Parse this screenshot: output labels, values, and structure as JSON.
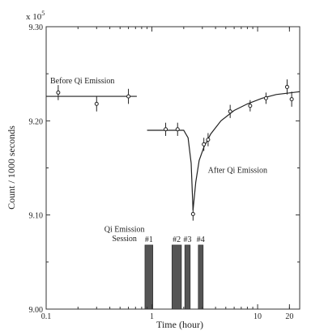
{
  "chart_data": {
    "type": "scatter",
    "xscale": "log",
    "xlabel": "Time (hour)",
    "ylabel": "Count / 1000 seconds",
    "multiplier_label": "x 10",
    "multiplier_exp": "5",
    "xlim": [
      0.1,
      25
    ],
    "ylim": [
      9.0,
      9.3
    ],
    "xticks": [
      {
        "value": 0.1,
        "label": "0.1"
      },
      {
        "value": 1,
        "label": "1"
      },
      {
        "value": 10,
        "label": "10"
      },
      {
        "value": 20,
        "label": "20"
      }
    ],
    "yticks": [
      {
        "value": 9.0,
        "label": "9.00"
      },
      {
        "value": 9.1,
        "label": "9.10"
      },
      {
        "value": 9.2,
        "label": "9.20"
      },
      {
        "value": 9.3,
        "label": "9.30"
      }
    ],
    "points": [
      {
        "x": 0.13,
        "y": 9.23,
        "err": 0.008
      },
      {
        "x": 0.3,
        "y": 9.218,
        "err": 0.008
      },
      {
        "x": 0.6,
        "y": 9.226,
        "err": 0.008
      },
      {
        "x": 1.35,
        "y": 9.191,
        "err": 0.007
      },
      {
        "x": 1.75,
        "y": 9.191,
        "err": 0.007
      },
      {
        "x": 2.45,
        "y": 9.101,
        "err": 0.007
      },
      {
        "x": 3.1,
        "y": 9.175,
        "err": 0.007
      },
      {
        "x": 3.4,
        "y": 9.18,
        "err": 0.007
      },
      {
        "x": 5.5,
        "y": 9.21,
        "err": 0.007
      },
      {
        "x": 8.5,
        "y": 9.216,
        "err": 0.006
      },
      {
        "x": 12.0,
        "y": 9.224,
        "err": 0.006
      },
      {
        "x": 19.0,
        "y": 9.236,
        "err": 0.008
      },
      {
        "x": 21.0,
        "y": 9.223,
        "err": 0.008
      }
    ],
    "before_line": {
      "x": [
        0.1,
        0.72
      ],
      "y": 9.226
    },
    "after_curve": [
      [
        0.9,
        9.19
      ],
      [
        2.0,
        9.19
      ],
      [
        2.2,
        9.182
      ],
      [
        2.35,
        9.155
      ],
      [
        2.45,
        9.105
      ],
      [
        2.6,
        9.135
      ],
      [
        2.8,
        9.158
      ],
      [
        3.1,
        9.172
      ],
      [
        3.6,
        9.186
      ],
      [
        4.5,
        9.2
      ],
      [
        6.0,
        9.211
      ],
      [
        8.0,
        9.218
      ],
      [
        11.0,
        9.224
      ],
      [
        15.0,
        9.228
      ],
      [
        25.0,
        9.231
      ]
    ],
    "sessions": [
      {
        "label": "#1",
        "x0": 0.86,
        "x1": 1.02,
        "top": 9.068
      },
      {
        "label": "#2",
        "x0": 1.55,
        "x1": 1.9,
        "top": 9.068
      },
      {
        "label": "#3",
        "x0": 2.05,
        "x1": 2.3,
        "top": 9.068
      },
      {
        "label": "#4",
        "x0": 2.75,
        "x1": 3.05,
        "top": 9.068
      }
    ],
    "annotations": [
      {
        "text": "Before Qi Emission",
        "x": 0.1,
        "y": 9.24
      },
      {
        "text": "After Qi Emission",
        "x": 3.1,
        "y": 9.145
      },
      {
        "text": "Qi Emission",
        "x": 0.55,
        "y": 9.082
      },
      {
        "text": "Session",
        "x": 0.55,
        "y": 9.072
      }
    ],
    "grid": false
  }
}
